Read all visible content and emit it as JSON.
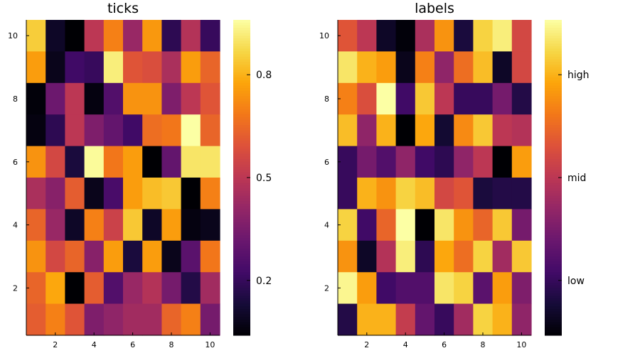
{
  "chart_data": [
    {
      "type": "heatmap",
      "title": "ticks",
      "xlabel": "",
      "ylabel": "",
      "x_ticks": [
        "2",
        "4",
        "6",
        "8",
        "10"
      ],
      "y_ticks": [
        "2",
        "4",
        "6",
        "8",
        "10"
      ],
      "xlim": [
        0.5,
        10.5
      ],
      "ylim": [
        0.5,
        10.5
      ],
      "colormap": "inferno",
      "colorbar": {
        "range": [
          0.04,
          0.96
        ],
        "tick_values": [
          0.2,
          0.5,
          0.8
        ],
        "tick_labels": [
          "0.2",
          "0.5",
          "0.8"
        ]
      },
      "z_rows_top_to_bottom": [
        [
          0.85,
          0.1,
          0.04,
          0.5,
          0.7,
          0.42,
          0.75,
          0.18,
          0.48,
          0.2
        ],
        [
          0.76,
          0.08,
          0.22,
          0.2,
          0.92,
          0.6,
          0.58,
          0.46,
          0.76,
          0.64
        ],
        [
          0.05,
          0.32,
          0.5,
          0.06,
          0.26,
          0.74,
          0.74,
          0.36,
          0.5,
          0.6
        ],
        [
          0.06,
          0.18,
          0.5,
          0.36,
          0.3,
          0.22,
          0.66,
          0.68,
          0.96,
          0.64
        ],
        [
          0.74,
          0.56,
          0.14,
          0.95,
          0.68,
          0.76,
          0.04,
          0.3,
          0.9,
          0.9
        ],
        [
          0.46,
          0.38,
          0.62,
          0.08,
          0.24,
          0.76,
          0.82,
          0.84,
          0.03,
          0.7
        ],
        [
          0.64,
          0.42,
          0.1,
          0.7,
          0.54,
          0.84,
          0.1,
          0.76,
          0.06,
          0.08
        ],
        [
          0.74,
          0.56,
          0.64,
          0.38,
          0.76,
          0.14,
          0.76,
          0.08,
          0.28,
          0.68
        ],
        [
          0.64,
          0.78,
          0.03,
          0.62,
          0.26,
          0.42,
          0.48,
          0.34,
          0.16,
          0.44
        ],
        [
          0.62,
          0.7,
          0.6,
          0.36,
          0.4,
          0.44,
          0.44,
          0.64,
          0.7,
          0.34
        ]
      ]
    },
    {
      "type": "heatmap",
      "title": "labels",
      "xlabel": "",
      "ylabel": "",
      "x_ticks": [
        "2",
        "4",
        "6",
        "8",
        "10"
      ],
      "y_ticks": [
        "2",
        "4",
        "6",
        "8",
        "10"
      ],
      "xlim": [
        0.5,
        10.5
      ],
      "ylim": [
        0.5,
        10.5
      ],
      "colormap": "inferno",
      "colorbar": {
        "range": [
          0.04,
          0.96
        ],
        "tick_values": [
          0.2,
          0.5,
          0.8
        ],
        "tick_labels": [
          "low",
          "mid",
          "high"
        ]
      },
      "z_rows_top_to_bottom": [
        [
          0.6,
          0.5,
          0.1,
          0.05,
          0.46,
          0.74,
          0.14,
          0.86,
          0.92,
          0.56
        ],
        [
          0.9,
          0.8,
          0.76,
          0.08,
          0.7,
          0.4,
          0.66,
          0.82,
          0.1,
          0.56
        ],
        [
          0.7,
          0.58,
          0.96,
          0.22,
          0.84,
          0.5,
          0.2,
          0.2,
          0.34,
          0.16
        ],
        [
          0.82,
          0.4,
          0.8,
          0.04,
          0.78,
          0.12,
          0.72,
          0.84,
          0.5,
          0.48
        ],
        [
          0.2,
          0.34,
          0.26,
          0.4,
          0.22,
          0.18,
          0.4,
          0.5,
          0.04,
          0.76
        ],
        [
          0.2,
          0.8,
          0.74,
          0.86,
          0.82,
          0.56,
          0.6,
          0.14,
          0.16,
          0.16
        ],
        [
          0.86,
          0.22,
          0.64,
          0.96,
          0.02,
          0.9,
          0.74,
          0.64,
          0.84,
          0.34
        ],
        [
          0.74,
          0.1,
          0.48,
          0.92,
          0.18,
          0.78,
          0.66,
          0.86,
          0.44,
          0.84
        ],
        [
          0.94,
          0.76,
          0.22,
          0.26,
          0.26,
          0.9,
          0.86,
          0.28,
          0.76,
          0.36
        ],
        [
          0.16,
          0.8,
          0.8,
          0.52,
          0.3,
          0.2,
          0.44,
          0.86,
          0.8,
          0.4
        ]
      ]
    }
  ]
}
